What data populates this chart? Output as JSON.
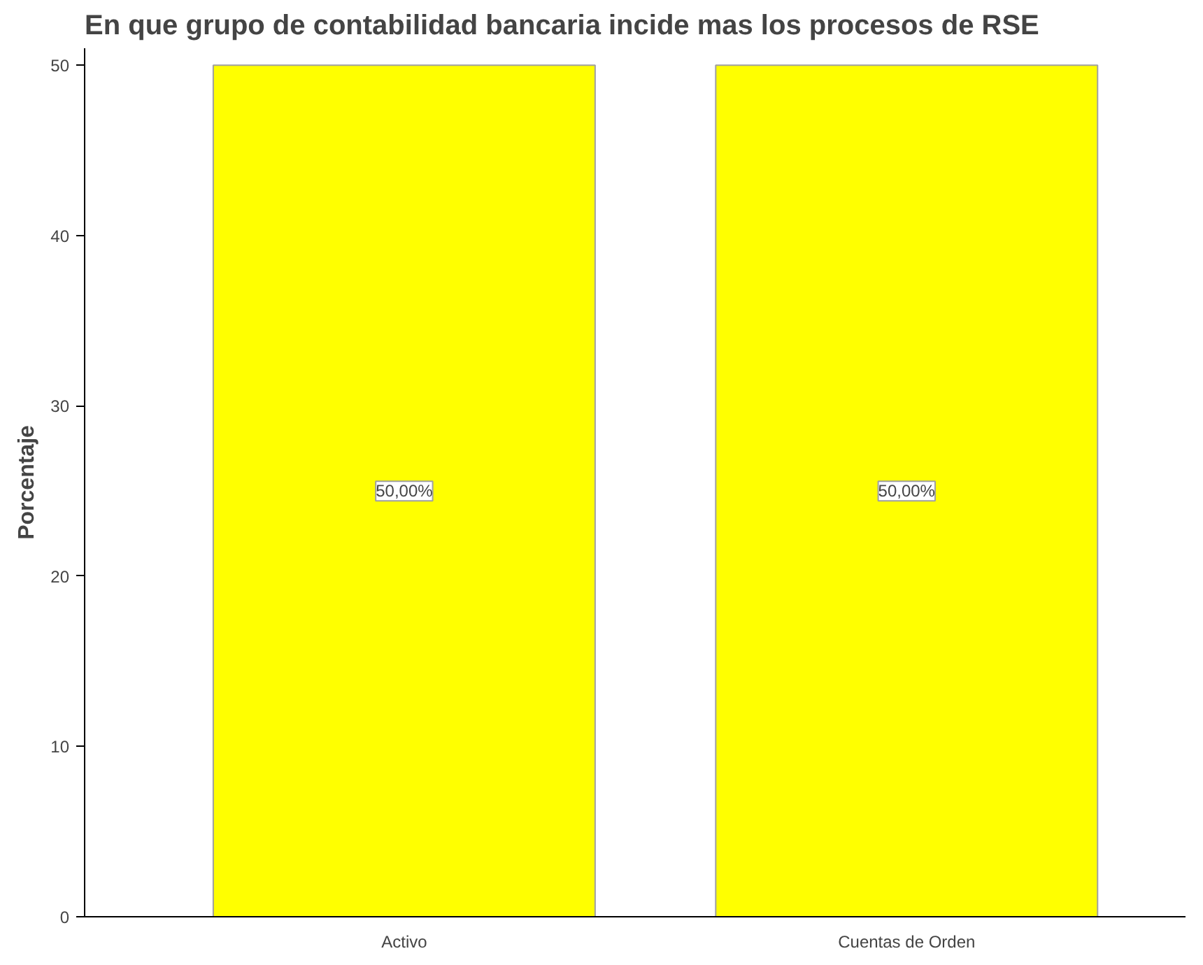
{
  "chart_data": {
    "type": "bar",
    "title": "En que grupo de contabilidad bancaria incide mas los procesos de RSE",
    "ylabel": "Porcentaje",
    "categories": [
      "Activo",
      "Cuentas de Orden"
    ],
    "values": [
      50,
      50
    ],
    "color": "#ffff00",
    "value_labels": [
      "50,00%",
      "50,00%"
    ],
    "ylim": [
      0,
      51
    ],
    "yticks": [
      0,
      10,
      20,
      30,
      40,
      50
    ],
    "grid": false
  }
}
